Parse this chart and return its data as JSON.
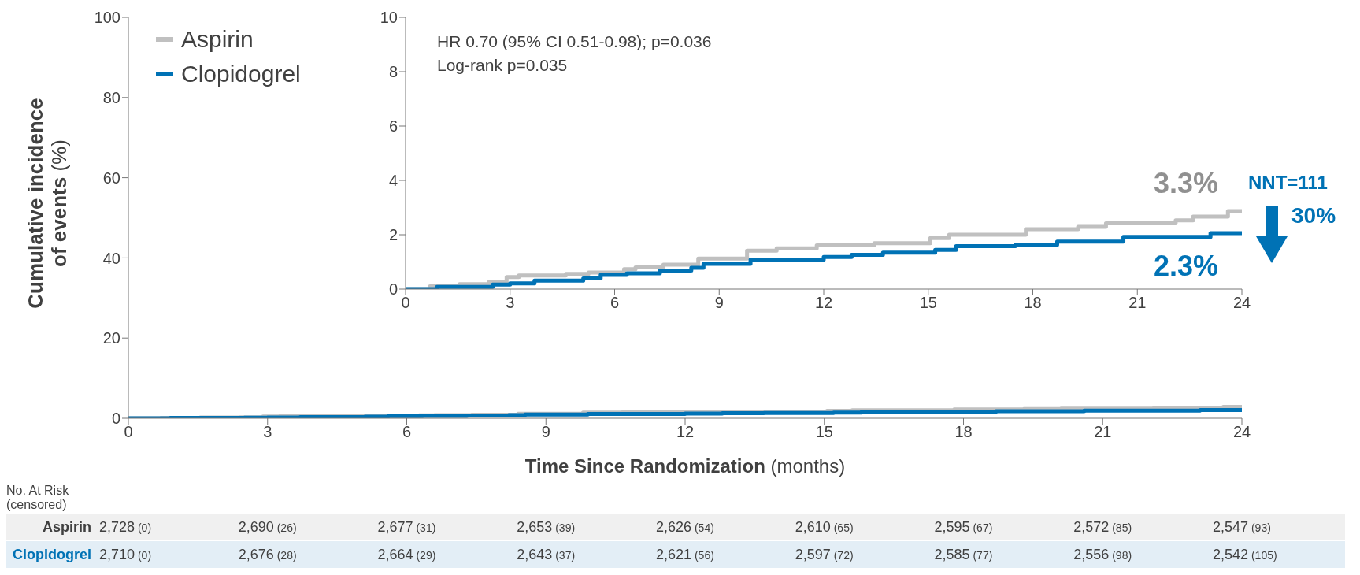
{
  "chart_data": [
    {
      "type": "step",
      "xlabel": "Time Since Randomization (months)",
      "ylabel": "Cumulative incidence of events (%)",
      "xlim": [
        0,
        24
      ],
      "xticks": [
        0,
        3,
        6,
        9,
        12,
        15,
        18,
        21,
        24
      ],
      "ylim": [
        0,
        100
      ],
      "yticks": [
        0,
        20,
        40,
        60,
        80,
        100
      ],
      "legend": "top left",
      "series": [
        {
          "name": "Aspirin",
          "color": "#c0c0c0",
          "x": [
            0,
            0.7,
            1.55,
            2.4,
            2.9,
            3.25,
            4.6,
            5.25,
            6.27,
            6.6,
            7.4,
            8.4,
            9.8,
            10.65,
            11.8,
            13.45,
            15.06,
            15.6,
            17.8,
            19.3,
            20.1,
            22.1,
            22.6,
            23.6,
            24
          ],
          "values": [
            0,
            0.1,
            0.18,
            0.27,
            0.44,
            0.5,
            0.56,
            0.61,
            0.73,
            0.8,
            0.9,
            1.12,
            1.41,
            1.5,
            1.61,
            1.69,
            1.88,
            2.0,
            2.2,
            2.29,
            2.42,
            2.53,
            2.67,
            2.87,
            2.87
          ]
        },
        {
          "name": "Clopidogrel",
          "color": "#0072b5",
          "x": [
            0,
            0.9,
            2.5,
            3.0,
            3.7,
            5.1,
            5.6,
            6.35,
            7.3,
            8.2,
            8.55,
            9.9,
            12.0,
            12.8,
            13.7,
            15.2,
            15.8,
            17.5,
            18.7,
            20.6,
            23.1,
            24
          ],
          "values": [
            0,
            0.08,
            0.17,
            0.21,
            0.31,
            0.39,
            0.52,
            0.58,
            0.68,
            0.78,
            0.93,
            1.08,
            1.18,
            1.26,
            1.34,
            1.44,
            1.58,
            1.63,
            1.75,
            1.92,
            2.06,
            2.06
          ]
        }
      ],
      "annotations": [
        "No. At Risk (censored)",
        "Aspirin",
        "2,728 (0)",
        "2,690 (26)",
        "2,677 (31)",
        "2,653 (39)",
        "2,626 (54)",
        "2,610 (65)",
        "2,595 (67)",
        "2,572 (85)",
        "2,547 (93)",
        "Clopidogrel",
        "2,710 (0)",
        "2,676 (28)",
        "2,664 (29)",
        "2,643 (37)",
        "2,621 (56)",
        "2,597 (72)",
        "2,585 (77)",
        "2,556 (98)",
        "2,542 (105)"
      ]
    },
    {
      "type": "step",
      "xlim": [
        0,
        24
      ],
      "xticks": [
        0,
        3,
        6,
        9,
        12,
        15,
        18,
        21,
        24
      ],
      "ylim": [
        0,
        10
      ],
      "yticks": [
        0,
        2,
        4,
        6,
        8,
        10
      ],
      "series": [
        {
          "color": "#c0c0c0",
          "x": [
            0,
            0.7,
            1.55,
            2.4,
            2.9,
            3.25,
            4.6,
            5.25,
            6.27,
            6.6,
            7.4,
            8.4,
            9.8,
            10.65,
            11.8,
            13.45,
            15.06,
            15.6,
            17.8,
            19.3,
            20.1,
            22.1,
            22.6,
            23.6,
            24
          ],
          "values": [
            0,
            0.1,
            0.18,
            0.27,
            0.44,
            0.5,
            0.56,
            0.61,
            0.73,
            0.8,
            0.9,
            1.12,
            1.41,
            1.5,
            1.61,
            1.69,
            1.88,
            2.0,
            2.2,
            2.29,
            2.42,
            2.53,
            2.67,
            2.87,
            2.87
          ]
        },
        {
          "color": "#0072b5",
          "x": [
            0,
            0.9,
            2.5,
            3.0,
            3.7,
            5.1,
            5.6,
            6.35,
            7.3,
            8.2,
            8.55,
            9.9,
            12.0,
            12.8,
            13.7,
            15.2,
            15.8,
            17.5,
            18.7,
            20.6,
            23.1,
            24
          ],
          "values": [
            0,
            0.08,
            0.17,
            0.21,
            0.31,
            0.39,
            0.52,
            0.58,
            0.68,
            0.78,
            0.93,
            1.08,
            1.18,
            1.26,
            1.34,
            1.44,
            1.58,
            1.63,
            1.75,
            1.92,
            2.06,
            2.06
          ]
        }
      ],
      "annotations": [
        "HR 0.70 (95% CI 0.51-0.98); p=0.036",
        "Log-rank p=0.035",
        "3.3%",
        "2.3%",
        "NNT=111",
        "30%"
      ]
    }
  ]
}
